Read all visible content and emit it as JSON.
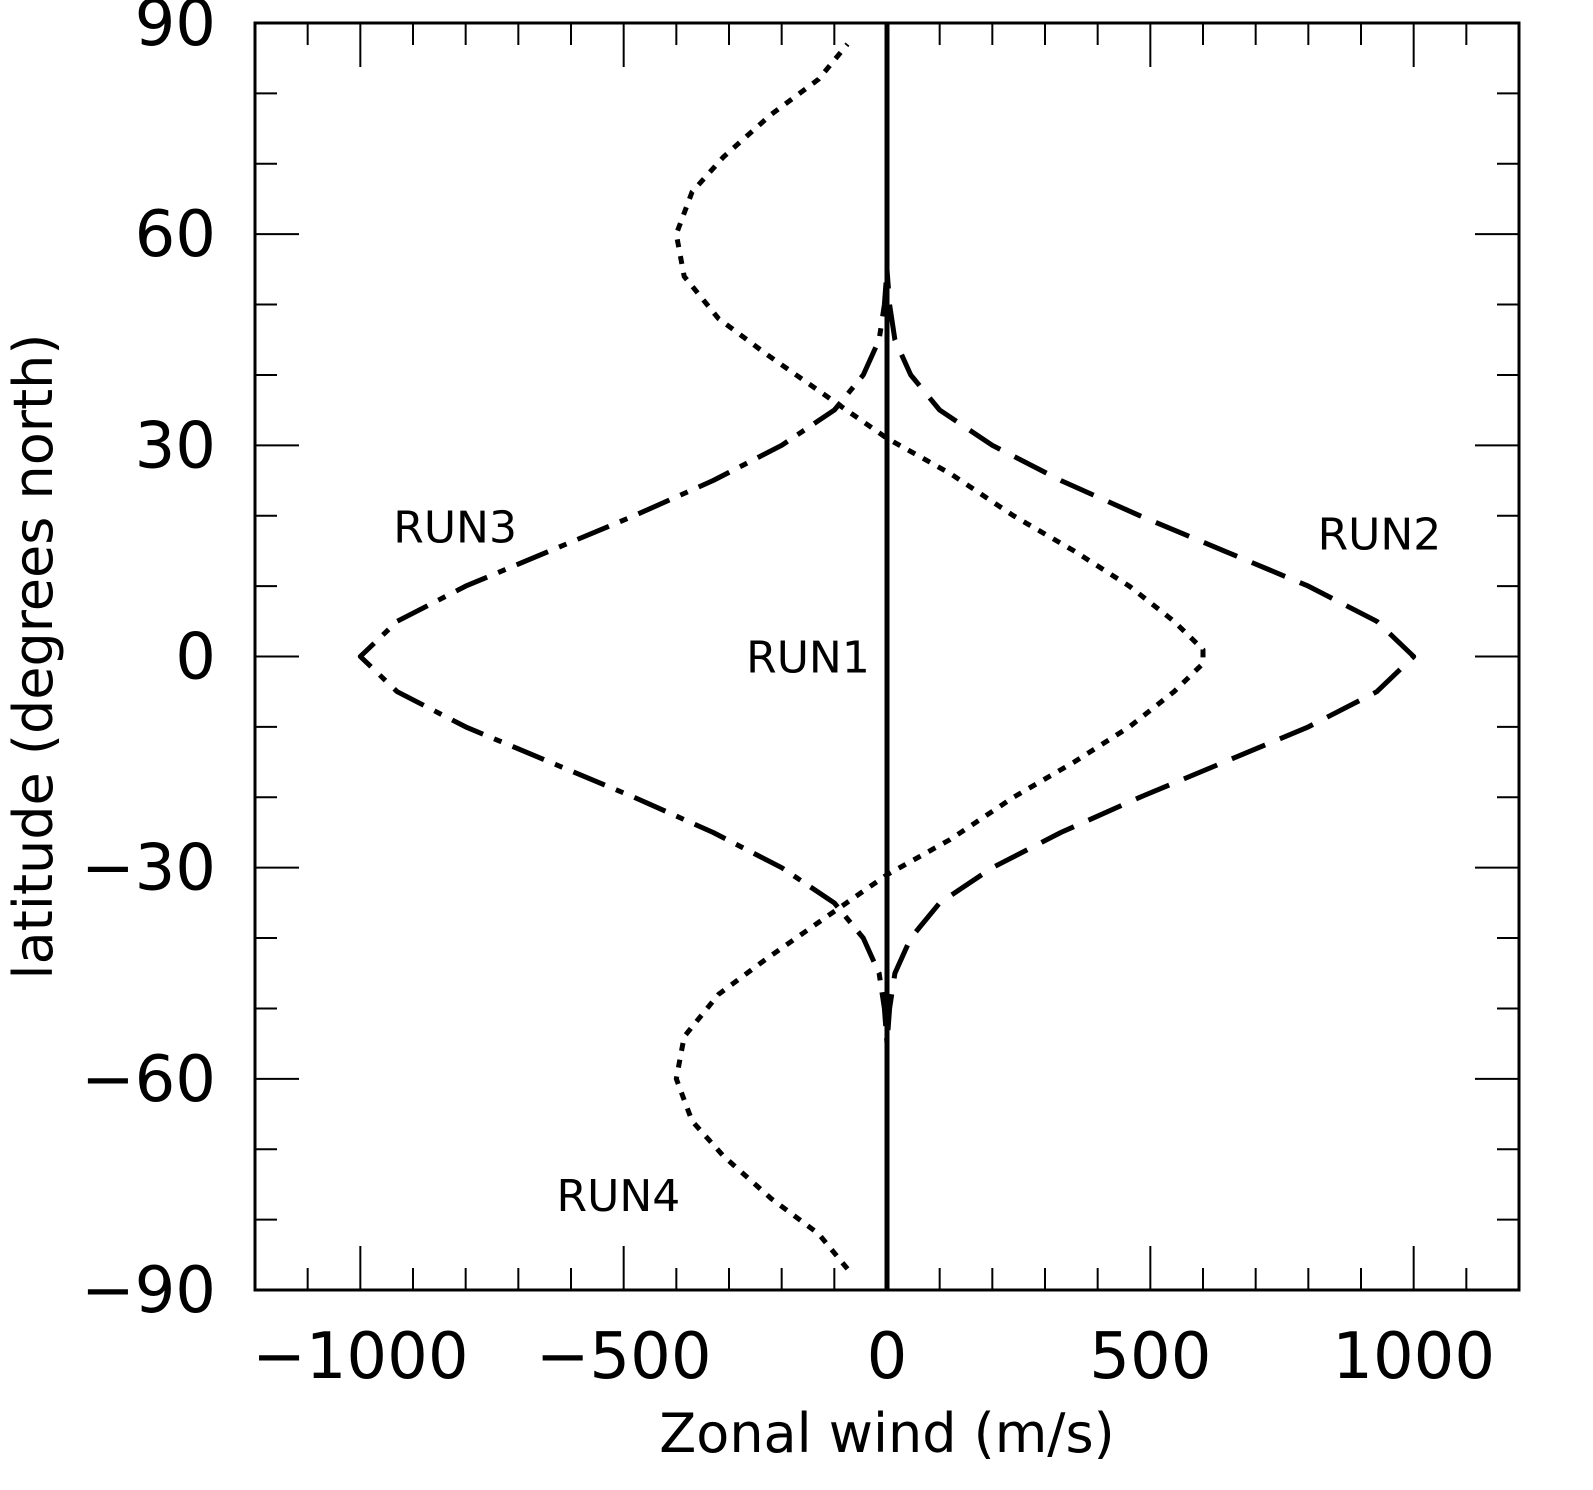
{
  "chart_data": {
    "type": "line",
    "title": "",
    "xlabel": "Zonal wind (m/s)",
    "ylabel": "latitude (degrees north)",
    "xlim": [
      -1200,
      1200
    ],
    "ylim": [
      -90,
      90
    ],
    "x_ticks": [
      -1000,
      -500,
      0,
      500,
      1000
    ],
    "x_tick_labels": [
      "−1000",
      "−500",
      "0",
      "500",
      "1000"
    ],
    "y_ticks": [
      -90,
      -60,
      -30,
      0,
      30,
      60,
      90
    ],
    "y_tick_labels": [
      "−90",
      "−60",
      "−30",
      "0",
      "30",
      "60",
      "90"
    ],
    "grid": false,
    "series": [
      {
        "name": "RUN1",
        "style": "solid",
        "points": [
          [
            0,
            -88
          ],
          [
            0,
            88
          ]
        ]
      },
      {
        "name": "RUN2",
        "style": "dashed",
        "points": [
          [
            0,
            -90
          ],
          [
            0,
            -60
          ],
          [
            0,
            -55
          ],
          [
            5,
            -50
          ],
          [
            15,
            -45
          ],
          [
            45,
            -40
          ],
          [
            100,
            -35
          ],
          [
            200,
            -30
          ],
          [
            330,
            -25
          ],
          [
            480,
            -20
          ],
          [
            640,
            -15
          ],
          [
            800,
            -10
          ],
          [
            930,
            -5
          ],
          [
            1000,
            0
          ],
          [
            930,
            5
          ],
          [
            800,
            10
          ],
          [
            640,
            15
          ],
          [
            480,
            20
          ],
          [
            330,
            25
          ],
          [
            200,
            30
          ],
          [
            100,
            35
          ],
          [
            45,
            40
          ],
          [
            15,
            45
          ],
          [
            5,
            50
          ],
          [
            0,
            55
          ],
          [
            0,
            60
          ],
          [
            0,
            90
          ]
        ]
      },
      {
        "name": "RUN3",
        "style": "dash-dot",
        "points": [
          [
            0,
            -90
          ],
          [
            0,
            -60
          ],
          [
            0,
            -55
          ],
          [
            -5,
            -50
          ],
          [
            -15,
            -45
          ],
          [
            -45,
            -40
          ],
          [
            -100,
            -35
          ],
          [
            -200,
            -30
          ],
          [
            -330,
            -25
          ],
          [
            -480,
            -20
          ],
          [
            -640,
            -15
          ],
          [
            -800,
            -10
          ],
          [
            -930,
            -5
          ],
          [
            -1000,
            0
          ],
          [
            -930,
            5
          ],
          [
            -800,
            10
          ],
          [
            -640,
            15
          ],
          [
            -480,
            20
          ],
          [
            -330,
            25
          ],
          [
            -200,
            30
          ],
          [
            -100,
            35
          ],
          [
            -45,
            40
          ],
          [
            -15,
            45
          ],
          [
            -5,
            50
          ],
          [
            0,
            55
          ],
          [
            0,
            60
          ],
          [
            0,
            90
          ]
        ]
      },
      {
        "name": "RUN4",
        "style": "dotted",
        "points": [
          [
            -75,
            -87
          ],
          [
            -130,
            -82
          ],
          [
            -220,
            -77
          ],
          [
            -310,
            -71
          ],
          [
            -370,
            -66
          ],
          [
            -400,
            -60
          ],
          [
            -385,
            -54
          ],
          [
            -320,
            -48
          ],
          [
            -230,
            -43
          ],
          [
            -115,
            -37
          ],
          [
            0,
            -31
          ],
          [
            120,
            -26
          ],
          [
            240,
            -20
          ],
          [
            355,
            -15
          ],
          [
            460,
            -10
          ],
          [
            545,
            -5
          ],
          [
            600,
            -1
          ],
          [
            600,
            1
          ],
          [
            545,
            5
          ],
          [
            460,
            10
          ],
          [
            355,
            15
          ],
          [
            240,
            20
          ],
          [
            120,
            26
          ],
          [
            0,
            31
          ],
          [
            -115,
            37
          ],
          [
            -230,
            43
          ],
          [
            -320,
            48
          ],
          [
            -385,
            54
          ],
          [
            -400,
            60
          ],
          [
            -370,
            66
          ],
          [
            -310,
            71
          ],
          [
            -220,
            77
          ],
          [
            -130,
            82
          ],
          [
            -75,
            87
          ]
        ]
      }
    ],
    "annotations": [
      {
        "text": "RUN3",
        "x": -820,
        "y": 18.5
      },
      {
        "text": "RUN2",
        "x": 935,
        "y": 17.5
      },
      {
        "text": "RUN1",
        "x": -150,
        "y": 0
      },
      {
        "text": "RUN4",
        "x": -510,
        "y": -76.5
      }
    ]
  }
}
